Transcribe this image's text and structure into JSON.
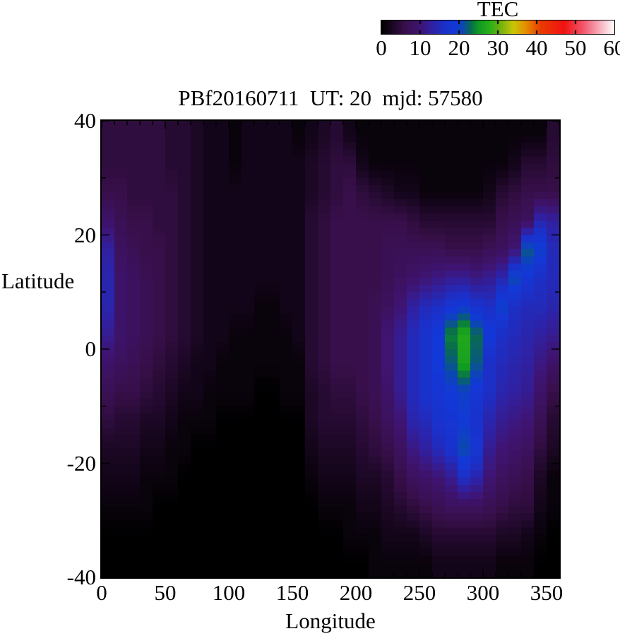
{
  "figure": {
    "background": "#ffffff",
    "text_color": "#000000"
  },
  "colorbar": {
    "title": "TEC",
    "tick_labels": [
      "0",
      "10",
      "20",
      "30",
      "40",
      "50",
      "60"
    ],
    "min": 0,
    "max": 60
  },
  "plot": {
    "title": "PBf20160711  UT: 20  mjd: 57580"
  },
  "axes": {
    "x": {
      "label": "Longitude",
      "min": 0,
      "max": 360,
      "tick_labels": [
        "0",
        "50",
        "100",
        "150",
        "200",
        "250",
        "300",
        "350"
      ],
      "major_tick_step": 50,
      "minor_tick_step": 10
    },
    "y": {
      "label": "Latitude",
      "min": -40,
      "max": 40,
      "tick_labels": [
        "40",
        "20",
        "0",
        "-20",
        "-40"
      ],
      "major_tick_step": 20,
      "minor_tick_step": 10
    }
  },
  "palette": {
    "stops": [
      [
        0,
        "#000000"
      ],
      [
        6,
        "#380f4a"
      ],
      [
        10,
        "#3f1473"
      ],
      [
        13,
        "#3020a0"
      ],
      [
        16,
        "#1c2fc6"
      ],
      [
        19,
        "#1238d8"
      ],
      [
        21,
        "#0b48b0"
      ],
      [
        23,
        "#086a50"
      ],
      [
        25,
        "#0f9922"
      ],
      [
        28,
        "#2bb01a"
      ],
      [
        30,
        "#5fae10"
      ],
      [
        34,
        "#c9c708"
      ],
      [
        37,
        "#e39200"
      ],
      [
        41,
        "#ea3c00"
      ],
      [
        47,
        "#f01212"
      ],
      [
        52,
        "#f2566b"
      ],
      [
        56,
        "#f7a8b8"
      ],
      [
        60,
        "#ffffff"
      ]
    ]
  },
  "chart_data": {
    "type": "heatmap",
    "title": "PBf20160711  UT: 20  mjd: 57580",
    "xlabel": "Longitude",
    "ylabel": "Latitude",
    "value_label": "TEC",
    "x_range": [
      0,
      360
    ],
    "y_range": [
      -40,
      40
    ],
    "value_range": [
      0,
      60
    ],
    "grid_on": false,
    "lon_centers": [
      5,
      15,
      25,
      35,
      45,
      55,
      65,
      75,
      85,
      95,
      105,
      115,
      125,
      135,
      145,
      155,
      165,
      175,
      185,
      195,
      205,
      215,
      225,
      235,
      245,
      255,
      265,
      275,
      285,
      295,
      305,
      315,
      325,
      335,
      345,
      355
    ],
    "lat_centers": [
      37.5,
      32.5,
      27.5,
      22.5,
      17.5,
      12.5,
      7.5,
      2.5,
      -2.5,
      -7.5,
      -12.5,
      -17.5,
      -22.5,
      -27.5,
      -32.5,
      -37.5
    ],
    "tec_grid": [
      [
        5,
        5,
        5,
        5,
        5,
        4,
        4,
        3,
        2,
        2,
        1,
        2,
        2,
        2,
        2,
        1,
        2,
        3,
        4,
        2,
        1,
        1,
        1,
        1,
        1,
        1,
        1,
        1,
        1,
        1,
        1,
        1,
        1,
        1,
        1,
        4
      ],
      [
        5,
        5,
        5,
        5,
        5,
        4,
        4,
        3,
        2,
        2,
        1,
        2,
        2,
        2,
        2,
        2,
        3,
        4,
        5,
        5,
        2,
        1,
        1,
        1,
        1,
        1,
        1,
        1,
        1,
        1,
        1,
        1,
        2,
        4,
        4,
        5
      ],
      [
        6,
        6,
        5,
        5,
        5,
        5,
        4,
        3,
        2,
        2,
        2,
        2,
        2,
        2,
        2,
        2,
        3,
        4,
        5,
        6,
        5,
        4,
        3,
        2,
        2,
        1,
        1,
        1,
        1,
        1,
        2,
        4,
        5,
        6,
        6,
        6
      ],
      [
        9,
        7,
        6,
        6,
        5,
        5,
        4,
        3,
        2,
        2,
        2,
        2,
        2,
        2,
        2,
        2,
        4,
        5,
        6,
        6,
        6,
        6,
        6,
        6,
        5,
        4,
        4,
        4,
        4,
        4,
        4,
        6,
        7,
        8,
        14,
        13
      ],
      [
        13,
        8,
        7,
        6,
        6,
        5,
        4,
        3,
        2,
        2,
        2,
        2,
        2,
        2,
        2,
        2,
        4,
        5,
        6,
        6,
        6,
        6,
        7,
        7,
        7,
        7,
        7,
        6,
        6,
        6,
        7,
        8,
        10,
        22,
        20,
        15
      ],
      [
        14,
        9,
        8,
        7,
        6,
        5,
        4,
        3,
        2,
        2,
        2,
        2,
        2,
        2,
        2,
        2,
        4,
        5,
        6,
        6,
        6,
        6,
        7,
        8,
        9,
        10,
        11,
        12,
        12,
        11,
        12,
        14,
        21,
        18,
        16,
        15
      ],
      [
        14,
        9,
        8,
        7,
        6,
        5,
        4,
        3,
        2,
        2,
        2,
        2,
        1,
        1,
        2,
        2,
        4,
        5,
        6,
        6,
        6,
        7,
        8,
        10,
        13,
        15,
        16,
        18,
        19,
        17,
        16,
        20,
        16,
        15,
        15,
        14
      ],
      [
        12,
        9,
        8,
        7,
        6,
        5,
        4,
        3,
        2,
        2,
        1,
        1,
        1,
        1,
        1,
        2,
        4,
        5,
        6,
        6,
        6,
        7,
        10,
        12,
        15,
        17,
        19,
        24,
        27,
        23,
        19,
        16,
        15,
        14,
        13,
        12
      ],
      [
        9,
        8,
        7,
        6,
        5,
        4,
        3,
        2,
        2,
        1,
        1,
        1,
        1,
        1,
        1,
        1,
        4,
        5,
        6,
        6,
        6,
        7,
        10,
        12,
        15,
        17,
        19,
        22,
        26,
        22,
        16,
        15,
        14,
        13,
        11,
        9
      ],
      [
        7,
        6,
        6,
        5,
        4,
        3,
        2,
        2,
        1,
        1,
        1,
        1,
        0,
        0,
        1,
        1,
        3,
        4,
        5,
        5,
        6,
        7,
        9,
        12,
        15,
        17,
        18,
        19,
        20,
        18,
        16,
        14,
        13,
        12,
        9,
        6
      ],
      [
        5,
        4,
        4,
        3,
        3,
        2,
        1,
        1,
        1,
        0,
        0,
        0,
        0,
        0,
        0,
        0,
        3,
        4,
        4,
        4,
        5,
        6,
        8,
        10,
        14,
        15,
        17,
        18,
        19,
        17,
        14,
        12,
        11,
        10,
        7,
        4
      ],
      [
        3,
        3,
        3,
        2,
        2,
        1,
        1,
        0,
        0,
        0,
        0,
        0,
        0,
        0,
        0,
        0,
        2,
        3,
        3,
        3,
        4,
        5,
        6,
        8,
        11,
        13,
        15,
        17,
        21,
        18,
        12,
        10,
        9,
        8,
        5,
        3
      ],
      [
        2,
        2,
        2,
        1,
        1,
        1,
        0,
        0,
        0,
        0,
        0,
        0,
        0,
        0,
        0,
        0,
        1,
        2,
        2,
        2,
        3,
        3,
        4,
        6,
        8,
        9,
        10,
        12,
        16,
        14,
        10,
        8,
        7,
        6,
        3,
        1
      ],
      [
        1,
        1,
        1,
        1,
        0,
        0,
        0,
        0,
        0,
        0,
        0,
        0,
        0,
        0,
        0,
        0,
        0,
        1,
        1,
        1,
        2,
        2,
        3,
        4,
        5,
        6,
        7,
        8,
        8,
        8,
        7,
        6,
        5,
        5,
        2,
        1
      ],
      [
        0,
        0,
        0,
        0,
        0,
        0,
        0,
        0,
        0,
        0,
        0,
        0,
        0,
        0,
        0,
        0,
        0,
        0,
        0,
        1,
        1,
        1,
        2,
        2,
        2,
        3,
        4,
        4,
        4,
        4,
        4,
        3,
        3,
        2,
        1,
        0
      ],
      [
        0,
        0,
        0,
        0,
        0,
        0,
        0,
        0,
        0,
        0,
        0,
        0,
        0,
        0,
        0,
        0,
        0,
        0,
        0,
        0,
        0,
        1,
        1,
        1,
        1,
        1,
        2,
        2,
        2,
        2,
        2,
        1,
        1,
        1,
        0,
        0
      ]
    ]
  }
}
